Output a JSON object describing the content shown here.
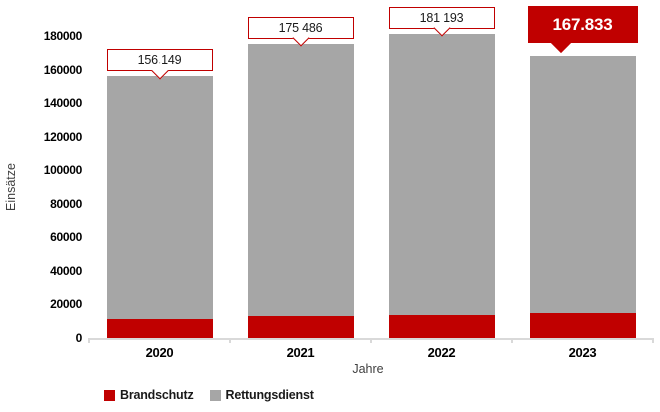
{
  "colors": {
    "accent_red": "#c00000",
    "bar_gray": "#a6a6a6",
    "axis_line": "#d9d9d9",
    "text_dark": "#1a1a1a",
    "axis_title_gray": "#404040",
    "highlight_callout_bg": "#c00000",
    "callout_border": "#c00000"
  },
  "chart_data": {
    "type": "bar",
    "stacked": true,
    "title": "",
    "xlabel": "Jahre",
    "ylabel": "Einsätze",
    "categories": [
      "2020",
      "2021",
      "2022",
      "2023"
    ],
    "series": [
      {
        "name": "Brandschutz",
        "color": "#c00000",
        "values": [
          11500,
          13000,
          13500,
          15000
        ]
      },
      {
        "name": "Rettungsdienst",
        "color": "#a6a6a6",
        "values": [
          144649,
          162486,
          167693,
          152833
        ]
      }
    ],
    "totals": [
      156149,
      175486,
      181193,
      167833
    ],
    "total_labels": [
      "156.149",
      "175.486",
      "181.193",
      "167.833"
    ],
    "highlight_index": 3,
    "ylim": [
      0,
      180000
    ],
    "yticks": [
      0,
      20000,
      40000,
      60000,
      80000,
      100000,
      120000,
      140000,
      160000,
      180000
    ],
    "grid": false,
    "legend_position": "bottom-left",
    "legend": [
      "Brandschutz",
      "Rettungsdienst"
    ]
  }
}
